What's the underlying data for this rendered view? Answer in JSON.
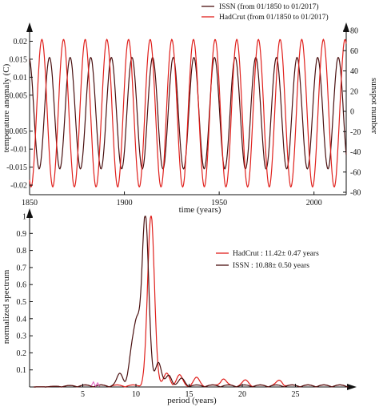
{
  "colors": {
    "issn": "#4a1010",
    "hadcrut": "#e0201c",
    "pink": "#e060c0",
    "axis": "#111111"
  },
  "chart_data": [
    {
      "type": "line",
      "xlabel": "time (years)",
      "ylabel": "temperature anomaly (C)",
      "ylabel_right": "sunspot number",
      "xlim": [
        1850,
        2017
      ],
      "ylim": [
        -0.022,
        0.023
      ],
      "ylim_right": [
        -80,
        80
      ],
      "x_ticks": [
        "1850",
        "1900",
        "1950",
        "2000"
      ],
      "y_ticks": [
        "0.02",
        "0.015",
        "0.01",
        "0.005",
        "-0.005",
        "-0.01",
        "-0.015",
        "-0.02"
      ],
      "y_ticks_right": [
        "80",
        "60",
        "40",
        "20",
        "0",
        "-20",
        "-40",
        "-60",
        "-80"
      ],
      "legend": [
        "ISSN (from 01/1850 to 01/2017)",
        "HadCrut (from 01/1850 to 01/2017)"
      ],
      "legend_position": "top-right",
      "series": [
        {
          "name": "ISSN (from 01/1850 to 01/2017)",
          "period_years": 10.88,
          "amplitude": 0.0155,
          "phase_peak_year": 1860.5,
          "axis": "left"
        },
        {
          "name": "HadCrut (from 01/1850 to 01/2017)",
          "period_years": 11.42,
          "amplitude": 0.0205,
          "phase_peak_year": 1856.5,
          "axis": "left"
        }
      ]
    },
    {
      "type": "line",
      "xlabel": "period (years)",
      "ylabel": "normalized spectrum",
      "xlim": [
        0,
        30
      ],
      "ylim": [
        0,
        1
      ],
      "x_ticks": [
        "5",
        "10",
        "15",
        "20",
        "25"
      ],
      "y_ticks": [
        "0.1",
        "0.2",
        "0.3",
        "0.4",
        "0.5",
        "0.6",
        "0.7",
        "0.8",
        "0.9",
        "1"
      ],
      "legend": [
        "HadCrut  :  11.42± 0.47 years",
        "ISSN       : 10.88± 0.50 years"
      ],
      "legend_position": "center-right",
      "series": [
        {
          "name": "HadCrut",
          "peak_period": 11.42,
          "peak_uncertainty": 0.47,
          "peak_value": 1.0,
          "secondary_peaks": [
            [
              12.9,
              0.07
            ],
            [
              14.1,
              0.06
            ],
            [
              15.7,
              0.045
            ],
            [
              18.2,
              0.04
            ],
            [
              20.3,
              0.03
            ],
            [
              23.5,
              0.03
            ]
          ]
        },
        {
          "name": "ISSN",
          "peak_period": 10.88,
          "peak_uncertainty": 0.5,
          "peak_value": 1.0,
          "secondary_peaks": [
            [
              8.5,
              0.07
            ],
            [
              9.6,
              0.18
            ],
            [
              10.1,
              0.32
            ],
            [
              12.1,
              0.14
            ],
            [
              13.1,
              0.06
            ],
            [
              14.3,
              0.04
            ]
          ]
        }
      ]
    }
  ]
}
